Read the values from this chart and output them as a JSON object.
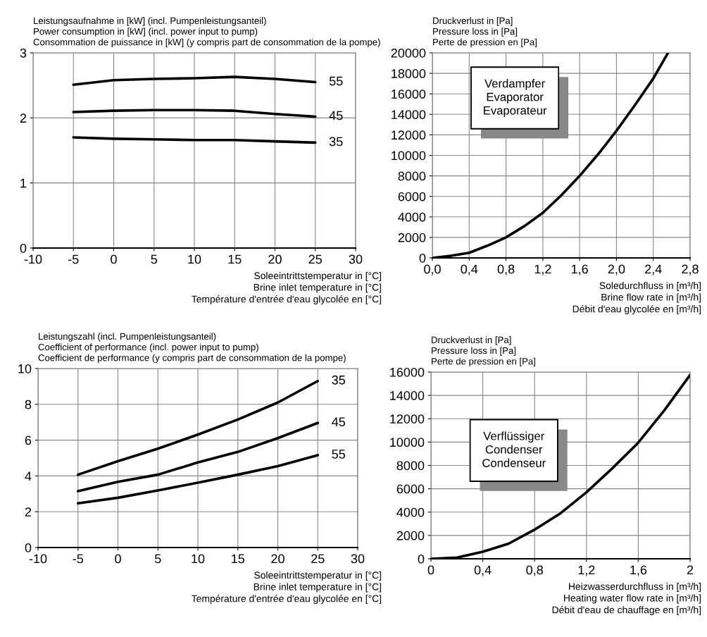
{
  "chart_data": [
    {
      "type": "line",
      "ylabel": "Leistungsaufnahme in [kW] (incl. Pumpenleistungsanteil)\nPower consumption in [kW] (incl. power input to pump)\nConsommation de puissance in [kW] (y compris part de consommation de la pompe)",
      "xlabel": "Soleeintrittstemperatur in [°C]\nBrine inlet temperature in [°C]\nTempérature d'entrée d'eau glycolée en [°C]",
      "x": [
        -5,
        0,
        5,
        10,
        15,
        20,
        25
      ],
      "xlim": [
        -10,
        30
      ],
      "xticks": [
        -10,
        -5,
        0,
        5,
        10,
        15,
        20,
        25,
        30
      ],
      "ylim": [
        0,
        3
      ],
      "yticks": [
        0,
        1,
        2,
        3
      ],
      "grid": true,
      "series": [
        {
          "name": "55",
          "color": "#000000",
          "values": [
            2.51,
            2.58,
            2.6,
            2.61,
            2.63,
            2.6,
            2.55
          ]
        },
        {
          "name": "45",
          "color": "#000000",
          "values": [
            2.09,
            2.11,
            2.12,
            2.12,
            2.11,
            2.06,
            2.02
          ]
        },
        {
          "name": "35",
          "color": "#000000",
          "values": [
            1.7,
            1.68,
            1.67,
            1.66,
            1.66,
            1.64,
            1.62
          ]
        }
      ]
    },
    {
      "type": "line",
      "ylabel": "Druckverlust in [Pa]\nPressure loss in [Pa]\nPerte de pression en [Pa]",
      "xlabel": "Soledurchfluss in [m³/h]\nBrine flow rate in [m³/h]\nDébit d'eau glycolée en [m³/h]",
      "xlim": [
        0,
        2.8
      ],
      "xticks": [
        {
          "value": 0,
          "label": "0,0"
        },
        {
          "value": 0.4,
          "label": "0,4"
        },
        {
          "value": 0.8,
          "label": "0,8"
        },
        {
          "value": 1.2,
          "label": "1,2"
        },
        {
          "value": 1.6,
          "label": "1,6"
        },
        {
          "value": 2.0,
          "label": "2,0"
        },
        {
          "value": 2.4,
          "label": "2,4"
        },
        {
          "value": 2.8,
          "label": "2,8"
        }
      ],
      "ylim": [
        0,
        20000
      ],
      "yticks": [
        0,
        2000,
        4000,
        6000,
        8000,
        10000,
        12000,
        14000,
        16000,
        18000,
        20000
      ],
      "grid": true,
      "annotations": [
        "Verdampfer\nEvaporator\nEvaporateur"
      ],
      "x": [
        0,
        0.2,
        0.4,
        0.6,
        0.8,
        1.0,
        1.2,
        1.4,
        1.6,
        1.8,
        2.0,
        2.2,
        2.4,
        2.56
      ],
      "series": [
        {
          "color": "#000000",
          "values": [
            0,
            200,
            500,
            1200,
            2000,
            3100,
            4400,
            6100,
            8000,
            10100,
            12400,
            14900,
            17500,
            20000
          ]
        }
      ]
    },
    {
      "type": "line",
      "ylabel": "Leistungszahl (incl. Pumpenleistungsanteil)\nCoefficient of performance (incl. power input to pump)\nCoefficient de performance (y compris part de consommation de la pompe)",
      "xlabel": "Soleeintrittstemperatur in [°C]\nBrine inlet temperature in [°C]\nTempérature d'entrée d'eau glycolée en [°C]",
      "x": [
        -5,
        0,
        5,
        10,
        15,
        20,
        25
      ],
      "xlim": [
        -10,
        30
      ],
      "xticks": [
        -10,
        -5,
        0,
        5,
        10,
        15,
        20,
        25,
        30
      ],
      "ylim": [
        0,
        10
      ],
      "yticks": [
        0,
        2,
        4,
        6,
        8,
        10
      ],
      "grid": true,
      "series": [
        {
          "name": "35",
          "color": "#000000",
          "values": [
            4.07,
            4.82,
            5.52,
            6.31,
            7.15,
            8.1,
            9.3
          ]
        },
        {
          "name": "45",
          "color": "#000000",
          "values": [
            3.15,
            3.67,
            4.07,
            4.75,
            5.34,
            6.11,
            6.96
          ]
        },
        {
          "name": "55",
          "color": "#000000",
          "values": [
            2.47,
            2.78,
            3.19,
            3.62,
            4.07,
            4.55,
            5.16
          ]
        }
      ]
    },
    {
      "type": "line",
      "ylabel": "Druckverlust in [Pa]\nPressure loss in [Pa]\nPerte de pression en [Pa]",
      "xlabel": "Heizwasserdurchfluss in [m³/h]\nHeating water flow rate in [m³/h]\nDébit d'eau de chauffage en [m³/h]",
      "xlim": [
        0,
        2.0
      ],
      "xticks": [
        0,
        {
          "value": 0.4,
          "label": "0,4"
        },
        {
          "value": 0.8,
          "label": "0,8"
        },
        {
          "value": 1.2,
          "label": "1,2"
        },
        {
          "value": 1.6,
          "label": "1,6"
        },
        {
          "value": 2.0,
          "label": "2"
        }
      ],
      "ylim": [
        0,
        16000
      ],
      "yticks": [
        0,
        2000,
        4000,
        6000,
        8000,
        10000,
        12000,
        14000,
        16000
      ],
      "grid": true,
      "annotations": [
        "Verflüssiger\nCondenser\nCondenseur"
      ],
      "x": [
        0,
        0.2,
        0.4,
        0.6,
        0.8,
        1.0,
        1.2,
        1.4,
        1.6,
        1.8,
        2.0
      ],
      "series": [
        {
          "color": "#000000",
          "values": [
            0,
            100,
            600,
            1300,
            2500,
            3900,
            5700,
            7750,
            9950,
            12700,
            15750
          ]
        }
      ]
    }
  ]
}
